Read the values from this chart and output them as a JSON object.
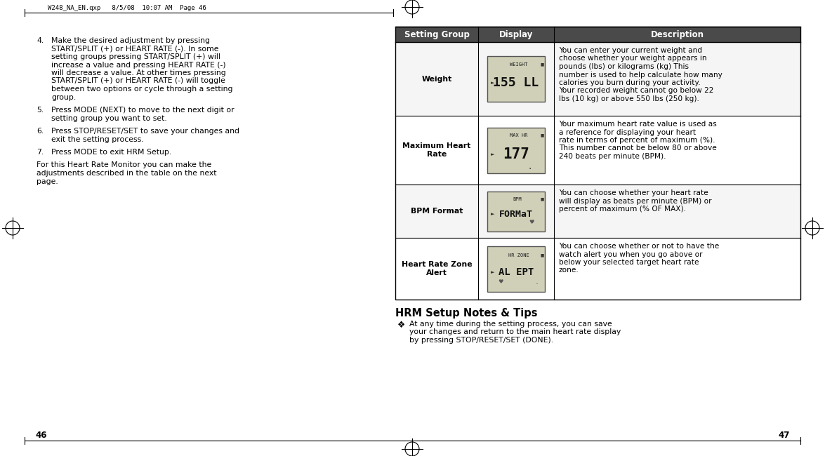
{
  "page_bg": "#ffffff",
  "header_bg": "#4a4a4a",
  "header_text_color": "#ffffff",
  "header_font_size": 8.5,
  "body_font_size": 7.8,
  "small_font_size": 7.2,
  "title_font_size": 10.5,
  "top_label": "W248_NA_EN.qxp   8/5/08  10:07 AM  Page 46",
  "page_num_left": "46",
  "page_num_right": "47",
  "left_items": [
    {
      "num": "4.",
      "text": "Make the desired adjustment by pressing START/SPLIT (+) or HEART RATE (-). In some setting groups pressing START/SPLIT (+) will increase a value and pressing HEART RATE (-) will decrease a value. At other times pressing START/SPLIT (+) or HEART RATE (-) will toggle between two options or cycle through a setting group."
    },
    {
      "num": "5.",
      "text": "Press MODE (NEXT) to move to the next digit or setting group you want to set."
    },
    {
      "num": "6.",
      "text": "Press STOP/RESET/SET to save your changes and exit the setting process."
    },
    {
      "num": "7.",
      "text": "Press MODE to exit HRM Setup."
    }
  ],
  "left_paragraph": "For this  Heart Rate Monitor you can make the adjustments described in the table on the next page.",
  "table_headers": [
    "Setting Group",
    "Display",
    "Description"
  ],
  "table_rows": [
    {
      "group": "Weight",
      "display_img": "weight",
      "description": "You can enter your current weight and choose whether your weight appears in pounds (lbs) or kilograms (kg) This number is used to help calculate how many calories you burn during your activity. Your recorded weight cannot go below 22 lbs (10 kg) or above 550 lbs (250 kg)."
    },
    {
      "group": "Maximum Heart\nRate",
      "display_img": "maxhr",
      "description": "Your maximum heart rate value is used as a reference for displaying your heart rate in terms of percent of maximum (%). This number cannot be below 80 or above 240 beats per minute (BPM)."
    },
    {
      "group": "BPM Format",
      "display_img": "bpmformat",
      "description": "You can choose whether your heart rate will display as beats per minute (BPM) or percent of maximum (% OF MAX)."
    },
    {
      "group": "Heart Rate Zone\nAlert",
      "display_img": "hrzone",
      "description": "You can choose whether or not to have the watch alert you when you go above or below your selected target heart rate zone."
    }
  ],
  "hrm_notes_title": "HRM Setup Notes & Tips",
  "hrm_notes_bullet": "At any time during the setting process, you can save your changes and return to the main heart rate display by pressing STOP/RESET/SET (DONE)."
}
